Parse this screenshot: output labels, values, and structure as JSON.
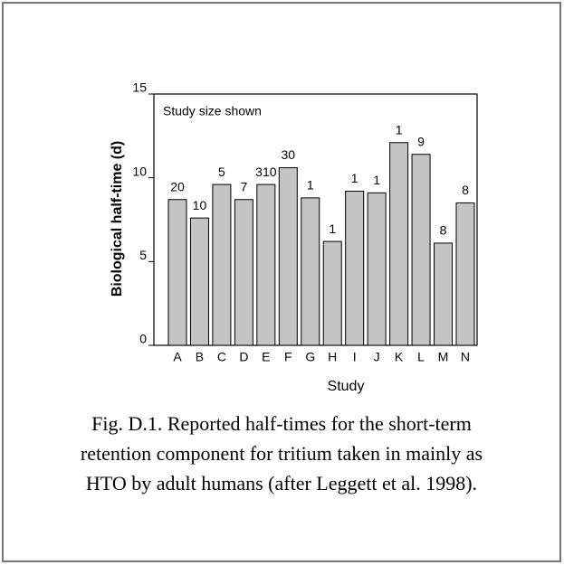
{
  "chart_data": {
    "type": "bar",
    "ylabel": "Biological half-time (d)",
    "xlabel": "Study",
    "annotation": "Study size shown",
    "categories": [
      "A",
      "B",
      "C",
      "D",
      "E",
      "F",
      "G",
      "H",
      "I",
      "J",
      "K",
      "L",
      "M",
      "N"
    ],
    "values": [
      8.7,
      7.6,
      9.6,
      8.7,
      9.6,
      10.6,
      8.8,
      6.2,
      9.2,
      9.1,
      12.1,
      11.4,
      6.1,
      8.5
    ],
    "study_sizes": [
      "20",
      "10",
      "5",
      "7",
      "310",
      "30",
      "1",
      "1",
      "1",
      "1",
      "1",
      "9",
      "8",
      "8"
    ],
    "color": "#c4c4c4",
    "ylim": [
      0,
      15
    ],
    "yticks": [
      0,
      5,
      10,
      15
    ],
    "caption": [
      "Fig. D.1.  Reported half-times for the short-term",
      "retention component for tritium taken in mainly as",
      "HTO by adult humans (after Leggett et al. 1998)."
    ]
  }
}
